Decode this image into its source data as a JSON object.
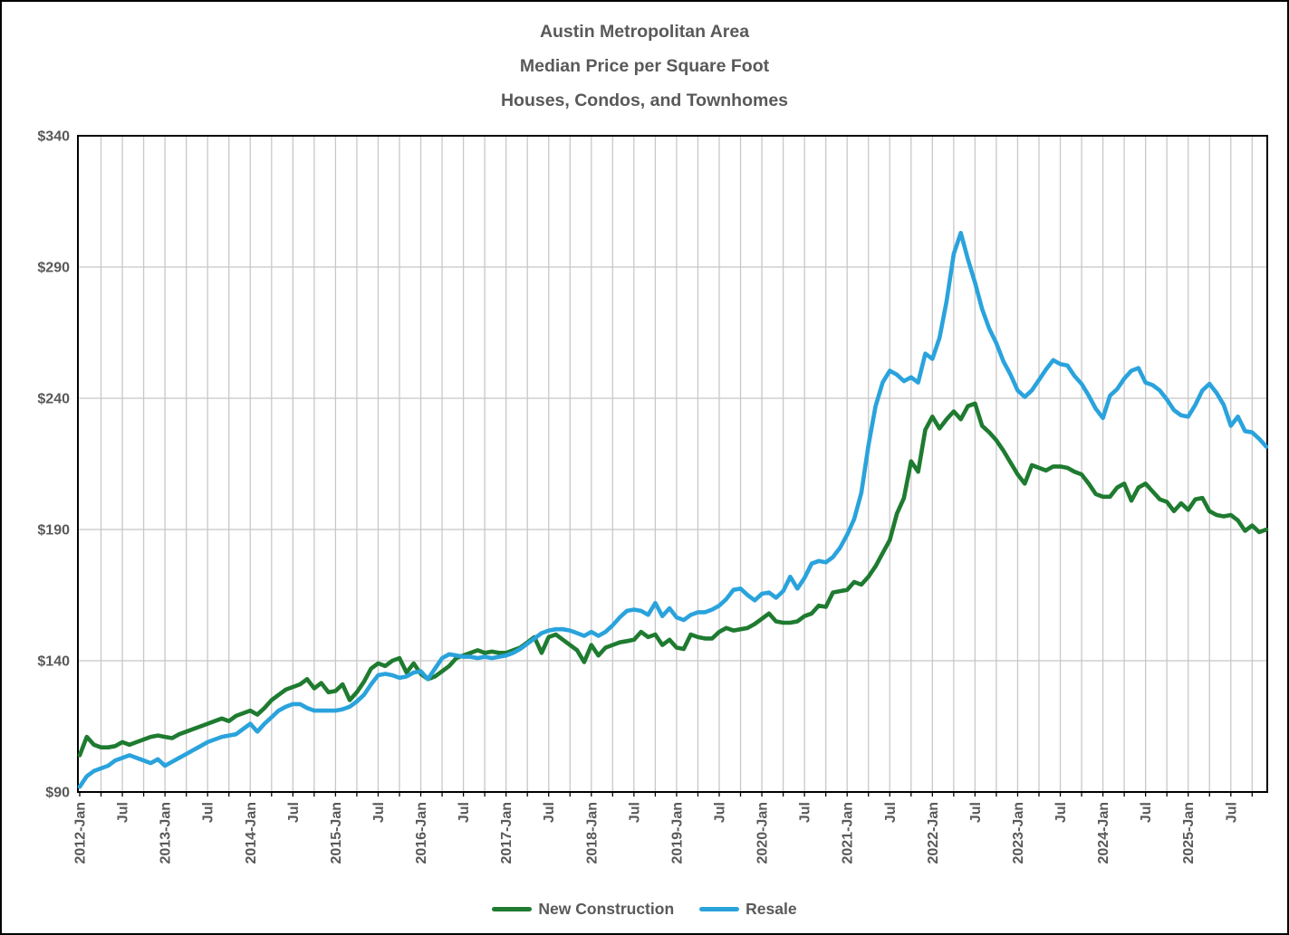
{
  "figure": {
    "title_lines": [
      "Austin Metropolitan Area",
      "Median Price per Square Foot",
      "Houses, Condos, and Townhomes"
    ]
  },
  "colors": {
    "new_construction": "#1e7b30",
    "resale": "#2aa3dc",
    "grid": "#c8c8c8",
    "axis": "#000000",
    "text": "#595959"
  },
  "chart_data": {
    "type": "line",
    "title": "Austin Metropolitan Area Median Price per Square Foot — Houses, Condos, and Townhomes",
    "x_unit": "month",
    "x_start": "2012-Jan",
    "x_end": "2025-Dec",
    "months_per_gridline": 3,
    "months_per_label": 6,
    "x_tick_labels": [
      "2012-Jan",
      "Jul",
      "2013-Jan",
      "Jul",
      "2014-Jan",
      "Jul",
      "2015-Jan",
      "Jul",
      "2016-Jan",
      "Jul",
      "2017-Jan",
      "Jul",
      "2018-Jan",
      "Jul",
      "2019-Jan",
      "Jul",
      "2020-Jan",
      "Jul",
      "2021-Jan",
      "Jul",
      "2022-Jan",
      "Jul",
      "2023-Jan",
      "Jul",
      "2024-Jan",
      "Jul",
      "2025-Jan",
      "Jul"
    ],
    "ylim": [
      90,
      340
    ],
    "y_ticks": [
      90,
      140,
      190,
      240,
      290,
      340
    ],
    "y_tick_labels": [
      "$90",
      "$140",
      "$190",
      "$240",
      "$290",
      "$340"
    ],
    "grid": true,
    "legend_position": "bottom-center",
    "series": [
      {
        "name": "New Construction",
        "color": "#1e7b30",
        "values": [
          104,
          111,
          108,
          107,
          107,
          107.5,
          109,
          108,
          109,
          110,
          111,
          111.5,
          111,
          110.5,
          112,
          113,
          114,
          115,
          116,
          117,
          118,
          117,
          119,
          120,
          121,
          119.5,
          122,
          125,
          127,
          129,
          130,
          131,
          133,
          129.5,
          131.5,
          128,
          128.5,
          131,
          125,
          128,
          132,
          137,
          139,
          138,
          140,
          141,
          135.5,
          139,
          135,
          133,
          134,
          136,
          138,
          141,
          142,
          143,
          144,
          143,
          143.5,
          143,
          143,
          144,
          145,
          147,
          149,
          143,
          149,
          150,
          148,
          146,
          144,
          139.5,
          146,
          142,
          145,
          146,
          147,
          147.5,
          148,
          151,
          149,
          150,
          146,
          148,
          145,
          144.5,
          150,
          149,
          148.5,
          148.5,
          151,
          152.5,
          151.5,
          152,
          152.5,
          154,
          156,
          158,
          155,
          154.5,
          154.5,
          155,
          157,
          158,
          161,
          160.5,
          166,
          166.5,
          167,
          170,
          169,
          172,
          176,
          181,
          186,
          196,
          202,
          216,
          212,
          228,
          233,
          228.5,
          232,
          235,
          232,
          237,
          238,
          229.5,
          227,
          224,
          220,
          215.5,
          211,
          207.5,
          214.5,
          213.5,
          212.5,
          214,
          214,
          213.5,
          212,
          211,
          207.5,
          203.5,
          202.5,
          202.5,
          206,
          207.5,
          201,
          206,
          207.5,
          204.5,
          201.5,
          200.5,
          197,
          200,
          197.5,
          201.5,
          202,
          197,
          195.5,
          195,
          195.5,
          193.5,
          189.5,
          191.5,
          189,
          190
        ]
      },
      {
        "name": "Resale",
        "color": "#2aa3dc",
        "values": [
          92,
          96,
          98,
          99,
          100,
          102,
          103,
          104,
          103,
          102,
          101,
          102.5,
          100,
          101.5,
          103,
          104.5,
          106,
          107.5,
          109,
          110,
          111,
          111.5,
          112,
          114,
          116,
          113,
          116,
          118.5,
          121,
          122.5,
          123.5,
          123.5,
          122,
          121,
          121,
          121,
          121,
          121.5,
          122.5,
          124.5,
          127,
          131,
          134.5,
          135,
          134.5,
          133.5,
          134,
          135.5,
          136,
          133,
          137,
          141,
          142.5,
          142,
          141.5,
          141.5,
          141,
          141.5,
          141,
          141.5,
          142,
          143,
          144.5,
          146.5,
          148.5,
          150.5,
          151.5,
          152,
          152,
          151.5,
          150.5,
          149.5,
          151,
          149.5,
          151,
          153.5,
          156.5,
          159,
          159.5,
          159,
          157.5,
          162,
          157,
          160,
          156.5,
          155.5,
          157.5,
          158.5,
          158.5,
          159.5,
          161,
          163.5,
          167,
          167.5,
          165,
          163,
          165.5,
          166,
          164,
          166.5,
          172,
          167.5,
          171.5,
          177,
          178,
          177.5,
          179.5,
          183,
          188,
          194,
          204,
          222,
          237,
          246,
          250.5,
          249,
          246.5,
          248,
          246,
          257,
          255,
          263,
          277,
          295,
          303,
          293,
          284,
          274,
          266.5,
          261,
          254,
          249,
          243,
          240.5,
          243,
          247,
          251,
          254.5,
          253,
          252.5,
          248.5,
          245.5,
          241,
          236,
          232.5,
          241,
          243.5,
          247.5,
          250.5,
          251.5,
          246,
          245,
          243,
          239.5,
          235.5,
          233.5,
          233,
          237.5,
          243,
          245.5,
          242,
          237.5,
          229.5,
          233,
          227.5,
          227,
          224.5,
          221.5
        ]
      }
    ]
  },
  "legend": {
    "items": [
      {
        "label": "New Construction"
      },
      {
        "label": "Resale"
      }
    ]
  }
}
